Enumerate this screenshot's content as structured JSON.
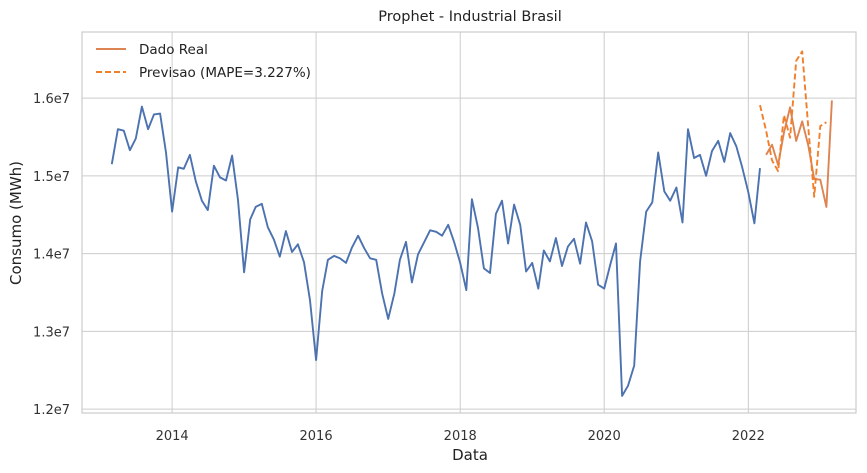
{
  "chart_data": {
    "type": "line",
    "title": "Prophet - Industrial Brasil",
    "xlabel": "Data",
    "ylabel": "Consumo (MWh)",
    "xlim": [
      "2012-10-01",
      "2023-07-01"
    ],
    "ylim": [
      11950000,
      16850000
    ],
    "x_ticks": [
      "2014-01-01",
      "2016-01-01",
      "2018-01-01",
      "2020-01-01",
      "2022-01-01"
    ],
    "x_tick_labels": [
      "2014",
      "2016",
      "2018",
      "2020",
      "2022"
    ],
    "y_ticks": [
      12000000,
      13000000,
      14000000,
      15000000,
      16000000
    ],
    "y_tick_labels": [
      "1.2e7",
      "1.3e7",
      "1.4e7",
      "1.5e7",
      "1.6e7"
    ],
    "grid": true,
    "legend": "top-left",
    "series": [
      {
        "name": "",
        "color": "#4c72b0",
        "style": "solid",
        "start": "2013-03",
        "values": [
          15150000,
          15600000,
          15580000,
          15330000,
          15480000,
          15890000,
          15600000,
          15790000,
          15800000,
          15300000,
          14540000,
          15110000,
          15090000,
          15270000,
          14930000,
          14680000,
          14560000,
          15130000,
          14980000,
          14940000,
          15260000,
          14690000,
          13760000,
          14440000,
          14600000,
          14640000,
          14340000,
          14180000,
          13960000,
          14290000,
          14020000,
          14120000,
          13890000,
          13400000,
          12630000,
          13520000,
          13920000,
          13970000,
          13940000,
          13880000,
          14080000,
          14230000,
          14070000,
          13940000,
          13920000,
          13490000,
          13160000,
          13490000,
          13920000,
          14150000,
          13630000,
          13990000,
          14140000,
          14300000,
          14280000,
          14230000,
          14370000,
          14150000,
          13880000,
          13530000,
          14700000,
          14330000,
          13810000,
          13750000,
          14510000,
          14680000,
          14130000,
          14630000,
          14370000,
          13770000,
          13880000,
          13550000,
          14040000,
          13900000,
          14200000,
          13840000,
          14090000,
          14190000,
          13870000,
          14400000,
          14160000,
          13600000,
          13550000,
          13860000,
          14130000,
          12170000,
          12300000,
          12560000,
          13900000,
          14540000,
          14660000,
          15300000,
          14800000,
          14680000,
          14850000,
          14400000,
          15600000,
          15230000,
          15270000,
          15000000,
          15320000,
          15450000,
          15180000,
          15550000,
          15380000,
          15110000,
          14790000,
          14390000,
          15100000
        ]
      },
      {
        "name": "Dado Real",
        "color": "#dd8452",
        "style": "solid",
        "start": "2022-04",
        "values": [
          15270000,
          15400000,
          15140000,
          15560000,
          15880000,
          15450000,
          15700000,
          15390000,
          14960000,
          14950000,
          14600000,
          15970000
        ]
      },
      {
        "name": "Previsao (MAPE=3.227%)",
        "color": "#f07f2c",
        "style": "dashed",
        "start": "2022-03",
        "values": [
          15910000,
          15580000,
          15200000,
          15060000,
          15780000,
          15490000,
          16480000,
          16600000,
          15620000,
          14730000,
          15640000,
          15690000
        ]
      }
    ]
  }
}
